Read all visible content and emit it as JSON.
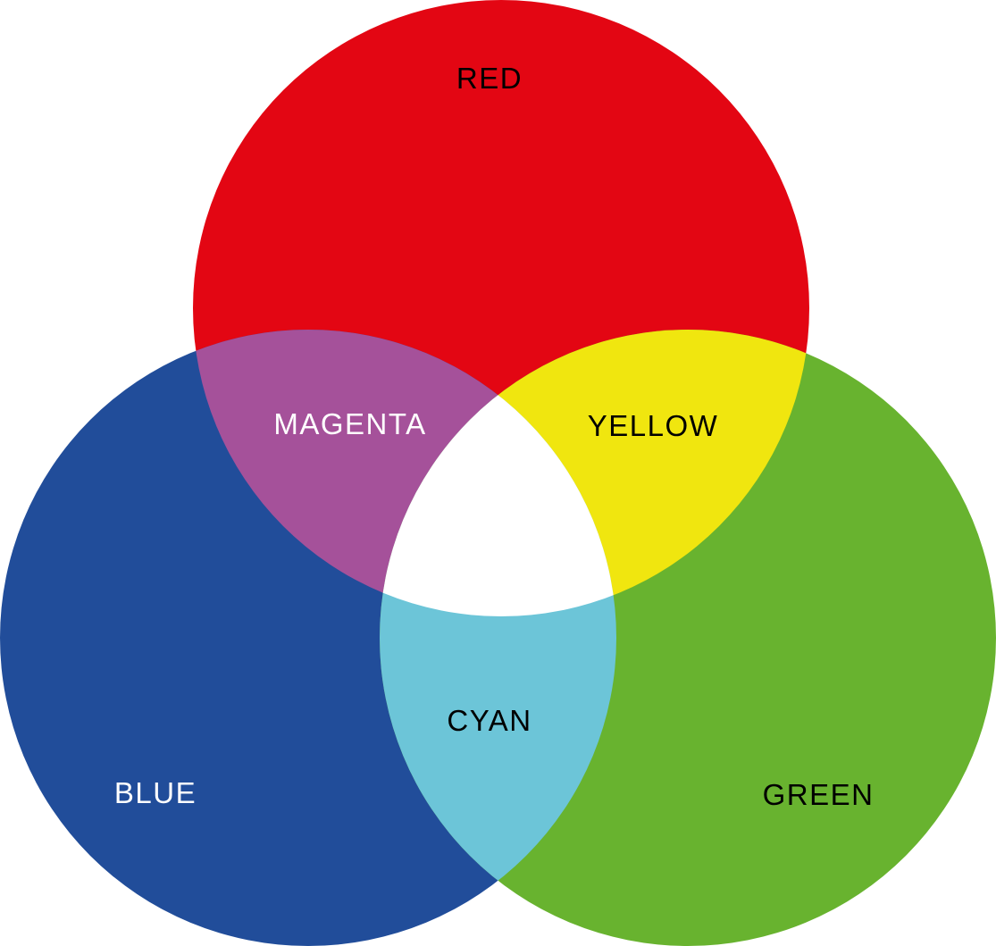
{
  "diagram": {
    "circles": [
      {
        "id": "red",
        "label": "RED",
        "color": "#e30613",
        "label_color": "#000000"
      },
      {
        "id": "blue",
        "label": "BLUE",
        "color": "#214d9a",
        "label_color": "#ffffff"
      },
      {
        "id": "green",
        "label": "GREEN",
        "color": "#68b32f",
        "label_color": "#000000"
      }
    ],
    "overlaps": [
      {
        "id": "magenta",
        "of": [
          "red",
          "blue"
        ],
        "label": "MAGENTA",
        "color": "#a5519a",
        "label_color": "#ffffff"
      },
      {
        "id": "yellow",
        "of": [
          "red",
          "green"
        ],
        "label": "YELLOW",
        "color": "#f0e60f",
        "label_color": "#000000"
      },
      {
        "id": "cyan",
        "of": [
          "blue",
          "green"
        ],
        "label": "CYAN",
        "color": "#6cc5d8",
        "label_color": "#000000"
      },
      {
        "id": "white",
        "of": [
          "red",
          "blue",
          "green"
        ],
        "label": "",
        "color": "#ffffff"
      }
    ]
  }
}
